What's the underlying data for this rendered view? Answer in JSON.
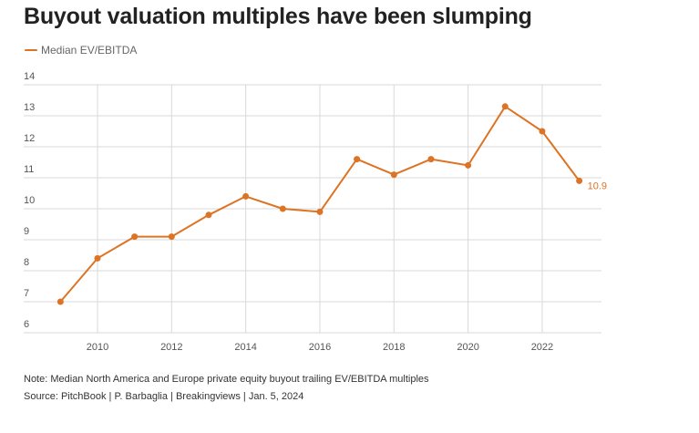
{
  "colors": {
    "series": "#dd7324",
    "grid": "#d9d9d9",
    "tick": "#555555"
  },
  "chart_data": {
    "type": "line",
    "title": "Buyout valuation multiples have been slumping",
    "xlabel": "",
    "ylabel": "",
    "x": [
      2009,
      2010,
      2011,
      2012,
      2013,
      2014,
      2015,
      2016,
      2017,
      2018,
      2019,
      2020,
      2021,
      2022,
      2023
    ],
    "series": [
      {
        "name": "Median EV/EBITDA",
        "values": [
          7.0,
          8.4,
          9.1,
          9.1,
          9.8,
          10.4,
          10.0,
          9.9,
          11.6,
          11.1,
          11.6,
          11.4,
          13.3,
          12.5,
          10.9
        ]
      }
    ],
    "xticks": [
      "2010",
      "2012",
      "2014",
      "2016",
      "2018",
      "2020",
      "2022"
    ],
    "yticks": [
      "6",
      "7",
      "8",
      "9",
      "10",
      "11",
      "12",
      "13",
      "14"
    ],
    "ylim": [
      6,
      14
    ],
    "xlim": [
      2008.5,
      2023.6
    ],
    "grid": true,
    "legend_position": "top-left",
    "annotations": [
      {
        "x": 2023,
        "y": 10.9,
        "text": "10.9"
      }
    ]
  },
  "footer": {
    "note": "Note: Median North America and Europe private equity buyout trailing EV/EBITDA multiples",
    "source": "Source: PitchBook | P. Barbaglia | Breakingviews | Jan. 5, 2024"
  }
}
